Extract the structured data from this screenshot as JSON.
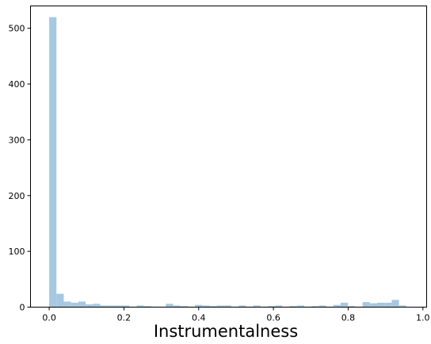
{
  "chart_data": {
    "type": "bar",
    "subtype": "histogram",
    "xlabel": "Instrumentalness",
    "ylabel": "",
    "title": "",
    "xlim": [
      -0.05,
      1.01
    ],
    "ylim": [
      0,
      540
    ],
    "xticks": [
      0.0,
      0.2,
      0.4,
      0.6,
      0.8,
      1.0
    ],
    "xtick_labels": [
      "0.0",
      "0.2",
      "0.4",
      "0.6",
      "0.8",
      "1.0"
    ],
    "yticks": [
      0,
      100,
      200,
      300,
      400,
      500
    ],
    "ytick_labels": [
      "0",
      "100",
      "200",
      "300",
      "400",
      "500"
    ],
    "bin_start": 0.0,
    "bin_width": 0.0195,
    "values": [
      520,
      24,
      10,
      8,
      10,
      5,
      6,
      3,
      3,
      3,
      3,
      1,
      3,
      2,
      1,
      1,
      6,
      3,
      2,
      1,
      4,
      3,
      2,
      3,
      3,
      1,
      3,
      1,
      3,
      1,
      2,
      3,
      1,
      2,
      3,
      1,
      2,
      3,
      1,
      4,
      8,
      2,
      1,
      9,
      7,
      8,
      8,
      13,
      3
    ],
    "bar_color": "#a6c8e0",
    "grid": false,
    "legend": "none"
  }
}
